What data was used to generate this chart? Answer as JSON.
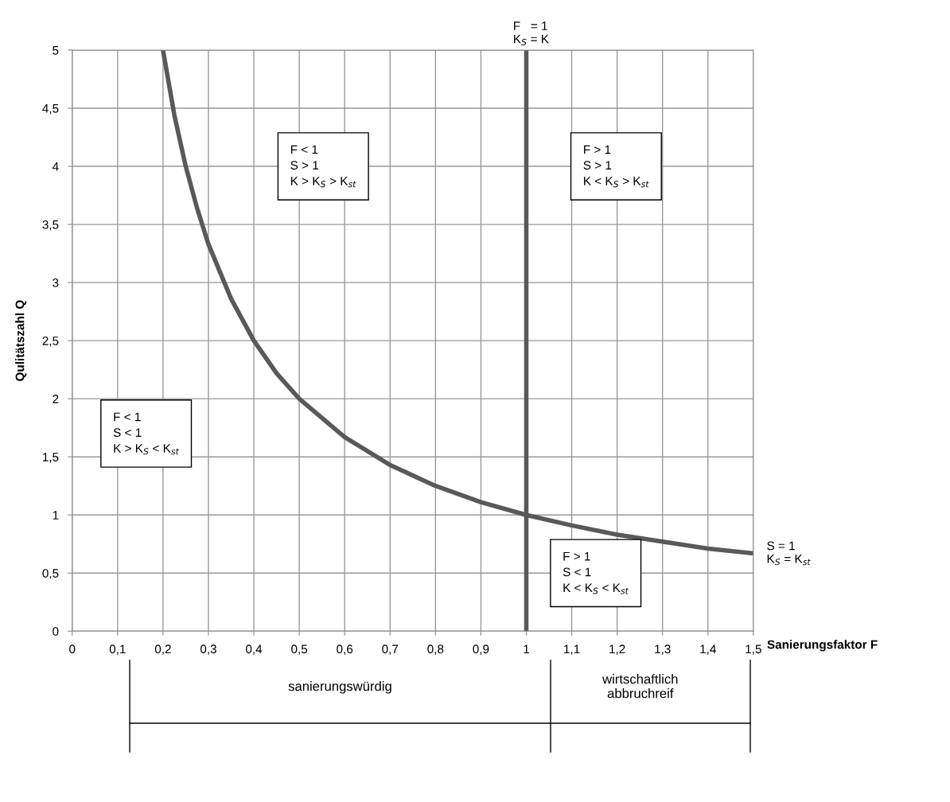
{
  "chart_data": {
    "type": "line",
    "xlabel": "Sanierungsfaktor F",
    "ylabel": "Qulitätszahl Q",
    "xlim": [
      0,
      1.5
    ],
    "xticks": [
      0,
      {
        "value": 0.1,
        "label": "0,1"
      },
      {
        "value": 0.2,
        "label": "0,2"
      },
      {
        "value": 0.3,
        "label": "0,3"
      },
      {
        "value": 0.4,
        "label": "0,4"
      },
      {
        "value": 0.5,
        "label": "0,5"
      },
      {
        "value": 0.6,
        "label": "0,6"
      },
      {
        "value": 0.7,
        "label": "0,7"
      },
      {
        "value": 0.8,
        "label": "0,8"
      },
      {
        "value": 0.9,
        "label": "0,9"
      },
      1,
      {
        "value": 1.1,
        "label": "1,1"
      },
      {
        "value": 1.2,
        "label": "1,2"
      },
      {
        "value": 1.3,
        "label": "1,3"
      },
      {
        "value": 1.4,
        "label": "1,4"
      },
      {
        "value": 1.5,
        "label": "1,5"
      }
    ],
    "ylim": [
      0,
      5
    ],
    "yticks": [
      0,
      {
        "value": 0.5,
        "label": "0,5"
      },
      1,
      {
        "value": 1.5,
        "label": "1,5"
      },
      2,
      {
        "value": 2.5,
        "label": "2,5"
      },
      3,
      {
        "value": 3.5,
        "label": "3,5"
      },
      4,
      {
        "value": 4.5,
        "label": "4,5"
      },
      5
    ],
    "grid": true,
    "series": [
      {
        "name": "S = 1\nK$_{S}$ = K$_{st}$",
        "color": "#595959",
        "x": [
          0.2,
          0.225,
          0.25,
          0.275,
          0.3,
          0.35,
          0.4,
          0.45,
          0.5,
          0.6,
          0.7,
          0.8,
          0.9,
          1.0,
          1.1,
          1.2,
          1.3,
          1.4,
          1.5
        ],
        "values": [
          5.0,
          4.44,
          4.0,
          3.64,
          3.33,
          2.86,
          2.5,
          2.22,
          2.0,
          1.67,
          1.43,
          1.25,
          1.11,
          1.0,
          0.91,
          0.83,
          0.77,
          0.71,
          0.67
        ]
      }
    ],
    "ref_lines": [
      {
        "axis": "x",
        "value": 1,
        "label": "F   = 1\nK$_{S}$ = K",
        "color": "#595959"
      }
    ],
    "annotations": [
      "F < 1\nS > 1\nK > K$_{S}$ > K$_{st}$",
      "F > 1\nS > 1\nK < K$_{S}$ > K$_{st}$",
      "F < 1\nS < 1\nK > K$_{S}$ < K$_{st}$",
      "F > 1\nS < 1\nK < K$_{S}$ < K$_{st}$",
      "sanierungswürdig",
      "wirtschaftlich\nabbruchreif"
    ]
  }
}
